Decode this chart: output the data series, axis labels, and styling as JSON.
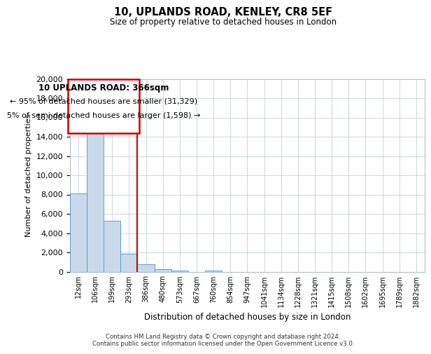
{
  "title": "10, UPLANDS ROAD, KENLEY, CR8 5EF",
  "subtitle": "Size of property relative to detached houses in London",
  "xlabel": "Distribution of detached houses by size in London",
  "ylabel": "Number of detached properties",
  "bar_color": "#c9d9ea",
  "bar_edgecolor": "#5b9bd5",
  "vline_color": "#cc0000",
  "vline_x": 3.5,
  "categories": [
    "12sqm",
    "106sqm",
    "199sqm",
    "293sqm",
    "386sqm",
    "480sqm",
    "573sqm",
    "667sqm",
    "760sqm",
    "854sqm",
    "947sqm",
    "1041sqm",
    "1134sqm",
    "1228sqm",
    "1321sqm",
    "1415sqm",
    "1508sqm",
    "1602sqm",
    "1695sqm",
    "1789sqm",
    "1882sqm"
  ],
  "bar_heights": [
    8100,
    16600,
    5300,
    1850,
    750,
    280,
    145,
    0,
    140,
    0,
    0,
    0,
    0,
    0,
    0,
    0,
    0,
    0,
    0,
    0,
    0
  ],
  "ylim": [
    0,
    20000
  ],
  "yticks": [
    0,
    2000,
    4000,
    6000,
    8000,
    10000,
    12000,
    14000,
    16000,
    18000,
    20000
  ],
  "annotation_title": "10 UPLANDS ROAD: 366sqm",
  "annotation_line1": "← 95% of detached houses are smaller (31,329)",
  "annotation_line2": "5% of semi-detached houses are larger (1,598) →",
  "annotation_box_edgecolor": "#cc0000",
  "footer_line1": "Contains HM Land Registry data © Crown copyright and database right 2024.",
  "footer_line2": "Contains public sector information licensed under the Open Government Licence v3.0.",
  "grid_color": "#c8d0dc",
  "spine_color": "#a8b8c8"
}
